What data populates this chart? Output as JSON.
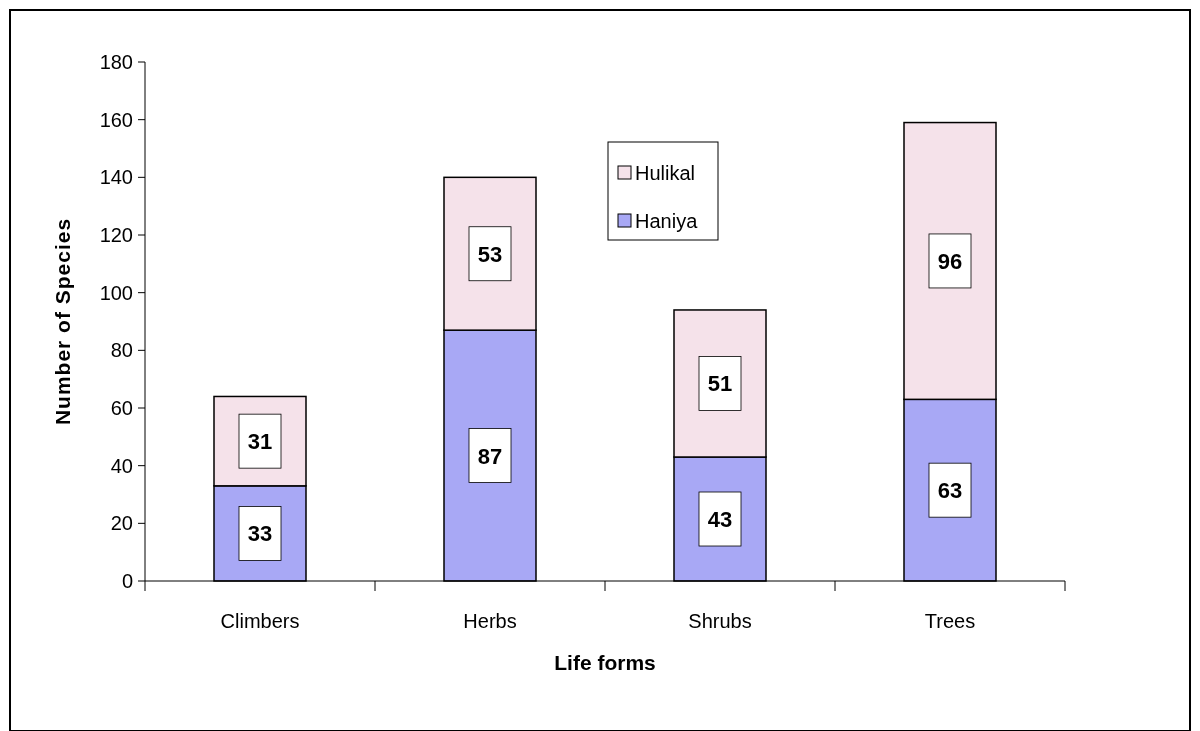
{
  "chart_data": {
    "type": "bar",
    "stacked": true,
    "xlabel": "Life forms",
    "ylabel": "Number of Species",
    "categories": [
      "Climbers",
      "Herbs",
      "Shrubs",
      "Trees"
    ],
    "series": [
      {
        "name": "Haniya",
        "color": "#a8a8f5",
        "values": [
          33,
          87,
          43,
          63
        ]
      },
      {
        "name": "Hulikal",
        "color": "#f5e2ea",
        "values": [
          31,
          53,
          51,
          96
        ]
      }
    ],
    "ylim": [
      0,
      180
    ],
    "yticks": [
      0,
      20,
      40,
      60,
      80,
      100,
      120,
      140,
      160,
      180
    ],
    "data_labels": true,
    "legend": "top",
    "grid": false
  }
}
